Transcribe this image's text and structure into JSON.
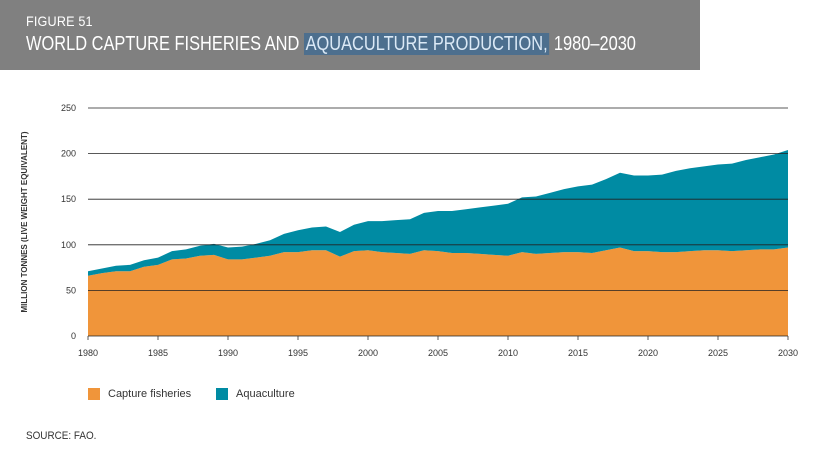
{
  "header": {
    "figure_label": "FIGURE 51",
    "title_part1": "WORLD CAPTURE FISHERIES AND ",
    "title_highlight": "AQUACULTURE PRODUCTION,",
    "title_part2": " 1980–2030"
  },
  "source": "SOURCE: FAO.",
  "colors": {
    "capture": "#f0953a",
    "aquaculture": "#008ba3",
    "grid": "#222222",
    "header_bg": "#808080"
  },
  "chart_data": {
    "type": "area",
    "stacked": true,
    "title": "WORLD CAPTURE FISHERIES AND AQUACULTURE PRODUCTION, 1980–2030",
    "ylabel": "MILLION TONNES (LIVE WEIGHT EQUIVALENT)",
    "xlabel": "",
    "xlim": [
      1980,
      2030
    ],
    "ylim": [
      0,
      250
    ],
    "yticks": [
      0,
      50,
      100,
      150,
      200,
      250
    ],
    "xticks": [
      1980,
      1985,
      1990,
      1995,
      2000,
      2005,
      2010,
      2015,
      2020,
      2025,
      2030
    ],
    "grid": true,
    "legend_position": "bottom-left",
    "x": [
      1980,
      1981,
      1982,
      1983,
      1984,
      1985,
      1986,
      1987,
      1988,
      1989,
      1990,
      1991,
      1992,
      1993,
      1994,
      1995,
      1996,
      1997,
      1998,
      1999,
      2000,
      2001,
      2002,
      2003,
      2004,
      2005,
      2006,
      2007,
      2008,
      2009,
      2010,
      2011,
      2012,
      2013,
      2014,
      2015,
      2016,
      2017,
      2018,
      2019,
      2020,
      2021,
      2022,
      2023,
      2024,
      2025,
      2026,
      2027,
      2028,
      2029,
      2030
    ],
    "series": [
      {
        "name": "Capture fisheries",
        "color": "#f0953a",
        "values": [
          66,
          69,
          71,
          71,
          76,
          78,
          84,
          85,
          88,
          89,
          84,
          84,
          86,
          88,
          92,
          92,
          94,
          94,
          87,
          93,
          94,
          92,
          91,
          90,
          94,
          93,
          91,
          91,
          90,
          89,
          88,
          92,
          90,
          91,
          92,
          92,
          91,
          94,
          97,
          93,
          93,
          92,
          92,
          93,
          94,
          94,
          93,
          94,
          95,
          95,
          97
        ]
      },
      {
        "name": "Aquaculture",
        "color": "#008ba3",
        "values": [
          5,
          5,
          6,
          7,
          7,
          8,
          9,
          10,
          11,
          12,
          13,
          14,
          15,
          17,
          20,
          24,
          25,
          26,
          27,
          29,
          32,
          34,
          36,
          38,
          41,
          44,
          46,
          48,
          51,
          54,
          57,
          60,
          63,
          66,
          69,
          72,
          75,
          78,
          82,
          83,
          83,
          85,
          89,
          91,
          92,
          94,
          96,
          99,
          101,
          104,
          107
        ]
      }
    ]
  }
}
